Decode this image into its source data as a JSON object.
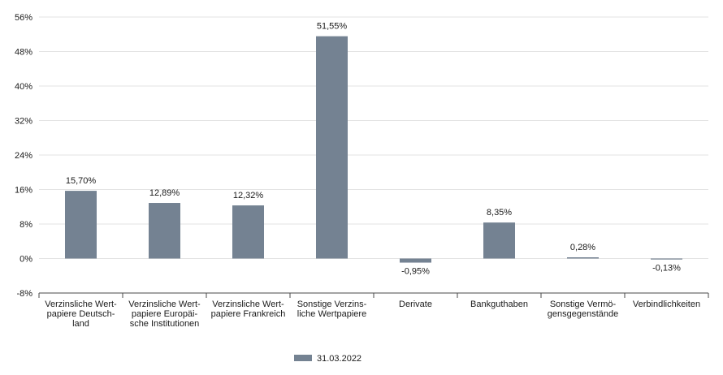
{
  "chart_data": {
    "type": "bar",
    "categories": [
      [
        "Verzinsliche Wert-",
        "papiere Deutsch-",
        "land"
      ],
      [
        "Verzinsliche Wert-",
        "papiere Europäi-",
        "sche Institutionen"
      ],
      [
        "Verzinsliche Wert-",
        "papiere Frankreich"
      ],
      [
        "Sonstige Verzins-",
        "liche Wertpapiere"
      ],
      [
        "Derivate"
      ],
      [
        "Bankguthaben"
      ],
      [
        "Sonstige Vermö-",
        "gensgegenstände"
      ],
      [
        "Verbindlichkeiten"
      ]
    ],
    "series": [
      {
        "name": "31.03.2022",
        "color": "#748292",
        "values": [
          15.7,
          12.89,
          12.32,
          51.55,
          -0.95,
          8.35,
          0.28,
          -0.13
        ],
        "labels": [
          "15,70%",
          "12,89%",
          "12,32%",
          "51,55%",
          "-0,95%",
          "8,35%",
          "0,28%",
          "-0,13%"
        ]
      }
    ],
    "yticks": [
      {
        "value": 56,
        "label": "56%"
      },
      {
        "value": 48,
        "label": "48%"
      },
      {
        "value": 40,
        "label": "40%"
      },
      {
        "value": 32,
        "label": "32%"
      },
      {
        "value": 24,
        "label": "24%"
      },
      {
        "value": 16,
        "label": "16%"
      },
      {
        "value": 8,
        "label": "8%"
      },
      {
        "value": 0,
        "label": "0%"
      },
      {
        "value": -8,
        "label": "-8%"
      }
    ],
    "ylim": [
      -8,
      56
    ],
    "grid": true,
    "legend_position": "bottom",
    "title": "",
    "xlabel": "",
    "ylabel": ""
  }
}
